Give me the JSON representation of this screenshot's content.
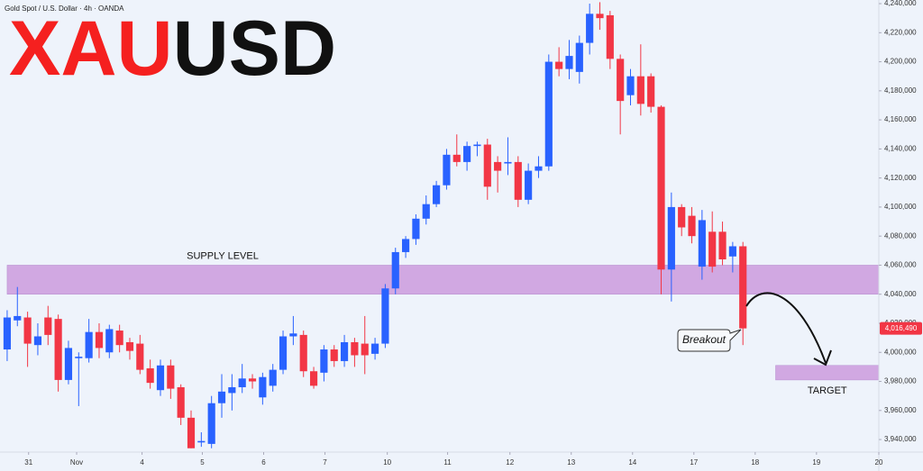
{
  "chart_data": {
    "type": "candlestick",
    "header": "Gold Spot / U.S. Dollar · 4h · OANDA",
    "title_parts": [
      "XAU",
      "USD"
    ],
    "title_colors": [
      "#f5201f",
      "#111111"
    ],
    "up_color": "#2962ff",
    "down_color": "#f23645",
    "open": [
      4002000,
      4022000,
      4024000,
      4005000,
      4024000,
      4023000,
      3981000,
      3996000,
      3996000,
      4014000,
      4000000,
      4015000,
      4007000,
      4006000,
      3989000,
      3974000,
      3991000,
      3976000,
      3955000,
      3938000,
      3937000,
      3965000,
      3972000,
      3976000,
      3982000,
      3969000,
      3977000,
      3988000,
      4011000,
      4012000,
      3987000,
      3986000,
      4002000,
      3994000,
      4007000,
      4006000,
      3999000,
      4006000,
      4044000,
      4069000,
      4078000,
      4092000,
      4102000,
      4115000,
      4136000,
      4131000,
      4142000,
      4143000,
      4131000,
      4130000,
      4131000,
      4105000,
      4125000,
      4128000,
      4200000,
      4195000,
      4193000,
      4213000,
      4233000,
      4232000,
      4202000,
      4177000,
      4190000,
      4190000,
      4169000,
      4057000,
      4100000,
      4094000,
      4059000,
      4083000,
      4083000,
      4066000,
      4073000
    ],
    "high": [
      4029000,
      4045000,
      4028000,
      4020000,
      4032000,
      4026000,
      4008000,
      4000000,
      4023000,
      4020000,
      4019000,
      4019000,
      4010000,
      4012000,
      3995000,
      3995000,
      3995000,
      3978000,
      3960000,
      3945000,
      3970000,
      3985000,
      3985000,
      3992000,
      3985000,
      3986000,
      3992000,
      4015000,
      4025000,
      4015000,
      3990000,
      4005000,
      4005000,
      4012000,
      4010000,
      4025000,
      4010000,
      4047000,
      4072000,
      4080000,
      4095000,
      4108000,
      4118000,
      4140000,
      4150000,
      4145000,
      4145000,
      4147000,
      4135000,
      4148000,
      4135000,
      4130000,
      4135000,
      4205000,
      4210000,
      4215000,
      4218000,
      4240000,
      4241000,
      4235000,
      4205000,
      4195000,
      4212000,
      4192000,
      4170000,
      4110000,
      4102000,
      4100000,
      4098000,
      4097000,
      4090000,
      4076000,
      4076000
    ],
    "low": [
      3994000,
      4018000,
      3990000,
      3998000,
      4005000,
      3973000,
      3978000,
      3963000,
      3993000,
      3996000,
      3996000,
      4000000,
      3995000,
      3985000,
      3975000,
      3970000,
      3968000,
      3950000,
      3934000,
      3935000,
      3934000,
      3955000,
      3960000,
      3972000,
      3975000,
      3964000,
      3973000,
      3985000,
      4005000,
      3983000,
      3975000,
      3980000,
      3990000,
      3990000,
      3990000,
      3985000,
      3995000,
      4003000,
      4040000,
      4065000,
      4074000,
      4088000,
      4100000,
      4112000,
      4128000,
      4125000,
      4135000,
      4105000,
      4110000,
      4122000,
      4100000,
      4102000,
      4120000,
      4125000,
      4190000,
      4188000,
      4185000,
      4205000,
      4222000,
      4195000,
      4150000,
      4170000,
      4163000,
      4165000,
      4040000,
      4035000,
      4080000,
      4075000,
      4050000,
      4055000,
      4060000,
      4055000,
      4005000
    ],
    "close": [
      4024000,
      4025000,
      4006000,
      4011000,
      4012000,
      3981000,
      4003000,
      3997000,
      4014000,
      4003000,
      4016000,
      4005000,
      4001000,
      3988000,
      3979000,
      3991000,
      3975000,
      3955000,
      3934000,
      3939000,
      3965000,
      3973000,
      3976000,
      3982000,
      3980000,
      3983000,
      3988000,
      4011000,
      4013000,
      3987000,
      3977000,
      4002000,
      3994000,
      4007000,
      3998000,
      3998000,
      4006000,
      4044000,
      4069000,
      4078000,
      4092000,
      4102000,
      4115000,
      4136000,
      4131000,
      4142000,
      4143000,
      4114000,
      4125000,
      4131000,
      4105000,
      4125000,
      4128000,
      4200000,
      4195000,
      4204000,
      4213000,
      4233000,
      4230000,
      4202000,
      4173000,
      4190000,
      4171000,
      4169000,
      4057000,
      4100000,
      4086000,
      4080000,
      4091000,
      4059000,
      4064000,
      4073000,
      4016490
    ],
    "xlim": [
      -0.7,
      85.3
    ],
    "xticks": [
      {
        "value": 2.1,
        "label": "31"
      },
      {
        "value": 6.8,
        "label": "Nov"
      },
      {
        "value": 13.2,
        "label": "4"
      },
      {
        "value": 19.1,
        "label": "5"
      },
      {
        "value": 25.1,
        "label": "6"
      },
      {
        "value": 31.1,
        "label": "7"
      },
      {
        "value": 37.2,
        "label": "10"
      },
      {
        "value": 43.1,
        "label": "11"
      },
      {
        "value": 49.2,
        "label": "12"
      },
      {
        "value": 55.2,
        "label": "13"
      },
      {
        "value": 61.2,
        "label": "14"
      },
      {
        "value": 67.2,
        "label": "17"
      },
      {
        "value": 73.2,
        "label": "18"
      },
      {
        "value": 79.2,
        "label": "19"
      },
      {
        "value": 85.3,
        "label": "20"
      }
    ],
    "ylim": [
      3932600,
      4242500
    ],
    "yticks": [
      {
        "value": 3940000,
        "label": "3,940,000"
      },
      {
        "value": 3960000,
        "label": "3,960,000"
      },
      {
        "value": 3980000,
        "label": "3,980,000"
      },
      {
        "value": 4000000,
        "label": "4,000,000"
      },
      {
        "value": 4020000,
        "label": "4,020,000"
      },
      {
        "value": 4040000,
        "label": "4,040,000"
      },
      {
        "value": 4060000,
        "label": "4,060,000"
      },
      {
        "value": 4080000,
        "label": "4,080,000"
      },
      {
        "value": 4100000,
        "label": "4,100,000"
      },
      {
        "value": 4120000,
        "label": "4,120,000"
      },
      {
        "value": 4140000,
        "label": "4,140,000"
      },
      {
        "value": 4160000,
        "label": "4,160,000"
      },
      {
        "value": 4180000,
        "label": "4,180,000"
      },
      {
        "value": 4200000,
        "label": "4,200,000"
      },
      {
        "value": 4220000,
        "label": "4,220,000"
      },
      {
        "value": 4240000,
        "label": "4,240,000"
      }
    ],
    "zones": [
      {
        "label": "SUPPLY LEVEL",
        "from": 4040000,
        "to": 4060000,
        "x_from": 0,
        "x_to": 85.3,
        "color": "#d1a8e2"
      },
      {
        "label": "TARGET",
        "from": 3981000,
        "to": 3991000,
        "x_from": 75.2,
        "x_to": 85.3,
        "color": "#d1a8e2"
      }
    ],
    "last_price": {
      "value": 4016490,
      "label": "4,016,490"
    },
    "breakout_label": "Breakout"
  }
}
